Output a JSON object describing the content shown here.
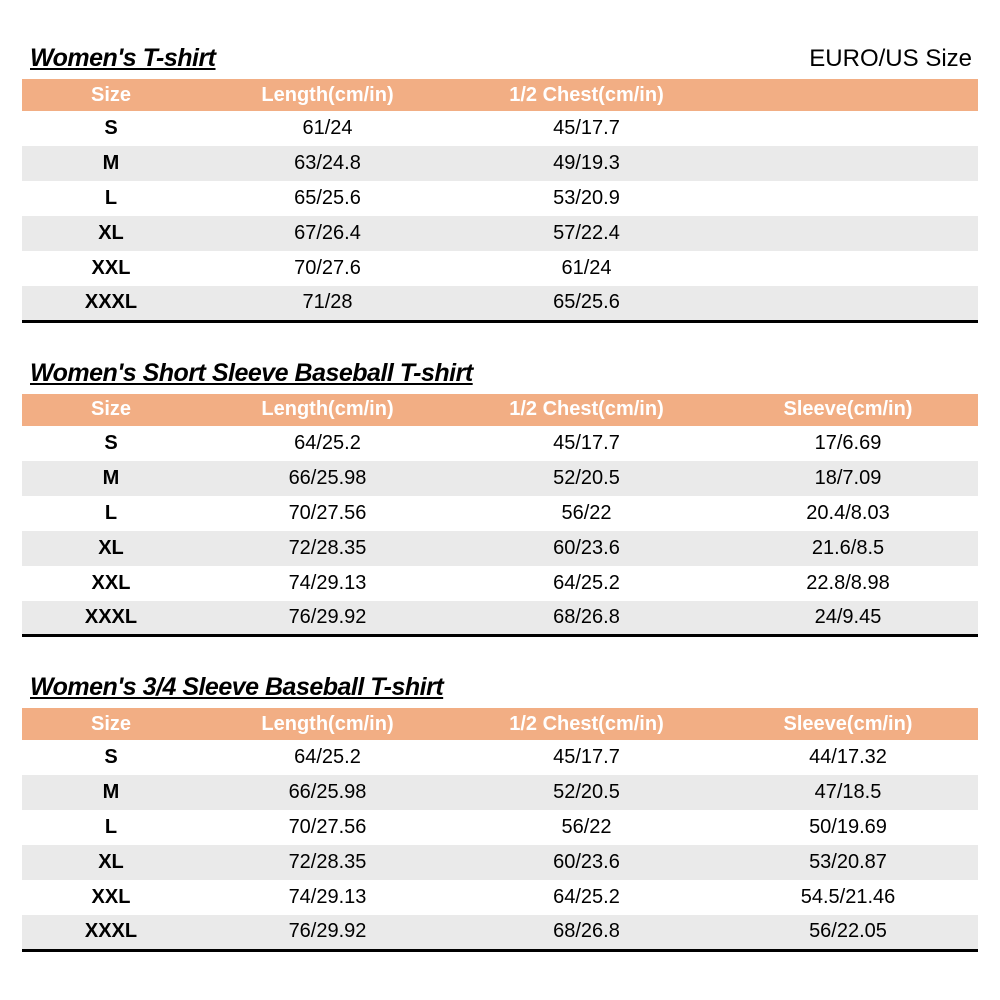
{
  "page": {
    "euro_us_label": "EURO/US Size"
  },
  "colors": {
    "header_bg": "#F2AE84",
    "header_text": "#FFFFFF",
    "alt_row_bg": "#EAEAEA",
    "table_border": "#000000",
    "text": "#000000"
  },
  "tables": [
    {
      "title": "Women's T-shirt",
      "columns": [
        "Size",
        "Length(cm/in)",
        "1/2 Chest(cm/in)",
        ""
      ],
      "rows": [
        [
          "S",
          "61/24",
          "45/17.7",
          ""
        ],
        [
          "M",
          "63/24.8",
          "49/19.3",
          ""
        ],
        [
          "L",
          "65/25.6",
          "53/20.9",
          ""
        ],
        [
          "XL",
          "67/26.4",
          "57/22.4",
          ""
        ],
        [
          "XXL",
          "70/27.6",
          "61/24",
          ""
        ],
        [
          "XXXL",
          "71/28",
          "65/25.6",
          ""
        ]
      ]
    },
    {
      "title": "Women's Short Sleeve Baseball T-shirt",
      "columns": [
        "Size",
        "Length(cm/in)",
        "1/2 Chest(cm/in)",
        "Sleeve(cm/in)"
      ],
      "rows": [
        [
          "S",
          "64/25.2",
          "45/17.7",
          "17/6.69"
        ],
        [
          "M",
          "66/25.98",
          "52/20.5",
          "18/7.09"
        ],
        [
          "L",
          "70/27.56",
          "56/22",
          "20.4/8.03"
        ],
        [
          "XL",
          "72/28.35",
          "60/23.6",
          "21.6/8.5"
        ],
        [
          "XXL",
          "74/29.13",
          "64/25.2",
          "22.8/8.98"
        ],
        [
          "XXXL",
          "76/29.92",
          "68/26.8",
          "24/9.45"
        ]
      ]
    },
    {
      "title": "Women's 3/4 Sleeve Baseball T-shirt",
      "columns": [
        "Size",
        "Length(cm/in)",
        "1/2 Chest(cm/in)",
        "Sleeve(cm/in)"
      ],
      "rows": [
        [
          "S",
          "64/25.2",
          "45/17.7",
          "44/17.32"
        ],
        [
          "M",
          "66/25.98",
          "52/20.5",
          "47/18.5"
        ],
        [
          "L",
          "70/27.56",
          "56/22",
          "50/19.69"
        ],
        [
          "XL",
          "72/28.35",
          "60/23.6",
          "53/20.87"
        ],
        [
          "XXL",
          "74/29.13",
          "64/25.2",
          "54.5/21.46"
        ],
        [
          "XXXL",
          "76/29.92",
          "68/26.8",
          "56/22.05"
        ]
      ]
    }
  ]
}
